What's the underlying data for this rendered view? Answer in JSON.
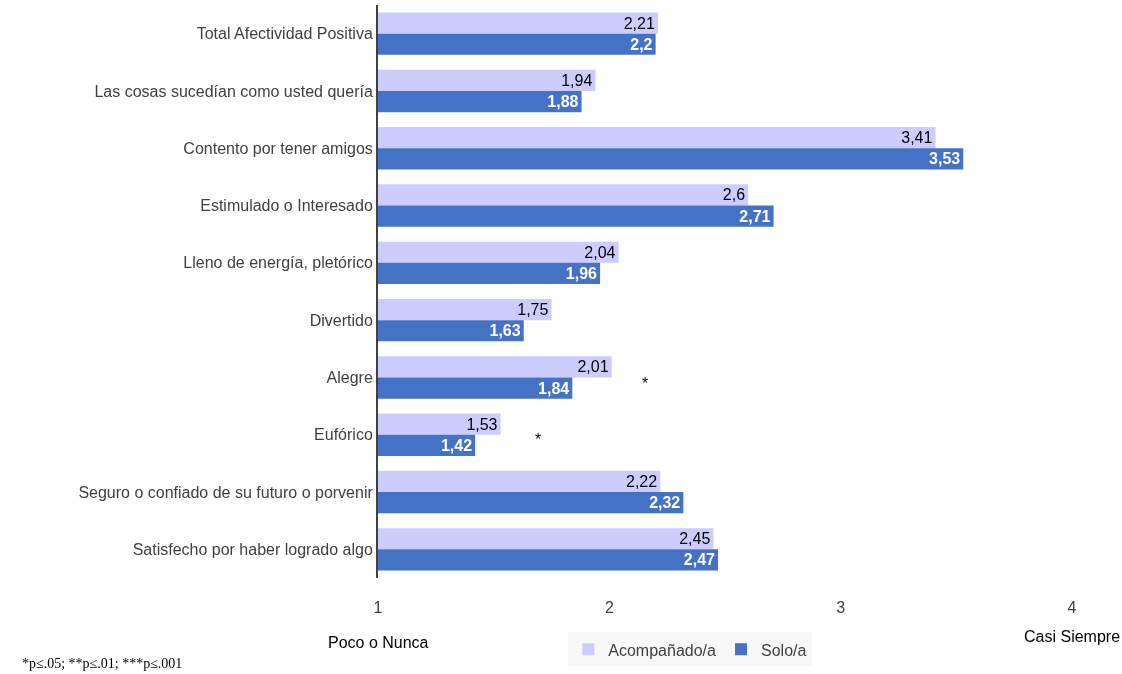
{
  "chart_data": {
    "type": "bar",
    "orientation": "horizontal",
    "categories": [
      "Total Afectividad Positiva",
      "Las cosas sucedían como usted quería",
      "Contento por tener amigos",
      "Estimulado o Interesado",
      "Lleno de energía, pletórico",
      "Divertido",
      "Alegre",
      "Eufórico",
      "Seguro o confiado de su futuro o porvenir",
      "Satisfecho por haber logrado algo"
    ],
    "series": [
      {
        "name": "Acompañado/a",
        "color": "#ccccff",
        "values": [
          2.21,
          1.94,
          3.41,
          2.6,
          2.04,
          1.75,
          2.01,
          1.53,
          2.22,
          2.45
        ],
        "value_labels": [
          "2,21",
          "1,94",
          "3,41",
          "2,6",
          "2,04",
          "1,75",
          "2,01",
          "1,53",
          "2,22",
          "2,45"
        ]
      },
      {
        "name": "Solo/a",
        "color": "#4472c4",
        "values": [
          2.2,
          1.88,
          3.53,
          2.71,
          1.96,
          1.63,
          1.84,
          1.42,
          2.32,
          2.47
        ],
        "value_labels": [
          "2,2",
          "1,88",
          "3,53",
          "2,71",
          "1,96",
          "1,63",
          "1,84",
          "1,42",
          "2,32",
          "2,47"
        ]
      }
    ],
    "xlim": [
      1,
      4
    ],
    "xticks": [
      1,
      2,
      3,
      4
    ],
    "annotations": [
      "Poco o Nunca",
      "Casi Siempre",
      "*p≤.05; **p≤.01; ***p≤.001",
      "*",
      "*"
    ],
    "grid": false,
    "legend": "bottom"
  }
}
